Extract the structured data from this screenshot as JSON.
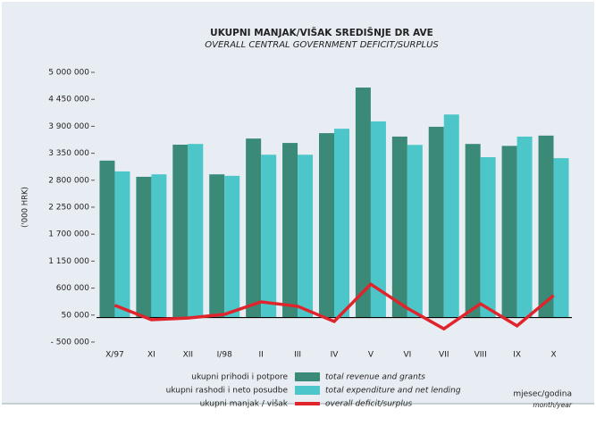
{
  "chart_data": {
    "type": "bar",
    "title": "UKUPNI MANJAK/VIŠAK SREDIŠNJE DR AVE",
    "subtitle": "OVERALL CENTRAL GOVERNMENT DEFICIT/SURPLUS",
    "y_label": "('000 HRK)",
    "x_label": "mjesec/godina",
    "x_label_en": "month/year",
    "categories": [
      "X/97",
      "XI",
      "XII",
      "I/98",
      "II",
      "III",
      "IV",
      "V",
      "VI",
      "VII",
      "VIII",
      "IX",
      "X"
    ],
    "series": [
      {
        "name": "ukupni prihodi i potpore",
        "label_en": "total revenue and grants",
        "type": "bar",
        "color": "#3b8a78",
        "values": [
          3200000,
          2870000,
          3525000,
          2920000,
          3650000,
          3560000,
          3760000,
          4690000,
          3690000,
          3890000,
          3540000,
          3500000,
          3710000
        ]
      },
      {
        "name": "ukupni rashodi i neto posudbe",
        "label_en": "total expenditure and net lending",
        "type": "bar",
        "color": "#4cc6c9",
        "values": [
          2980000,
          2920000,
          3540000,
          2890000,
          3320000,
          3320000,
          3850000,
          4000000,
          3520000,
          4140000,
          3270000,
          3690000,
          3250000
        ]
      },
      {
        "name": "ukupni manjak / višak",
        "label_en": "overall deficit/surplus",
        "type": "line",
        "color": "#e0242b",
        "values": [
          250000,
          -45000,
          -10000,
          65000,
          320000,
          230000,
          -80000,
          680000,
          190000,
          -230000,
          280000,
          -170000,
          450000
        ]
      }
    ],
    "ylim": [
      -500000,
      5000000
    ],
    "yticks": [
      {
        "value": -500000,
        "label": "- 500 000"
      },
      {
        "value": 50000,
        "label": "50 000"
      },
      {
        "value": 600000,
        "label": "600 000"
      },
      {
        "value": 1150000,
        "label": "1 150 000"
      },
      {
        "value": 1700000,
        "label": "1 700 000"
      },
      {
        "value": 2250000,
        "label": "2 250 000"
      },
      {
        "value": 2800000,
        "label": "2 800 000"
      },
      {
        "value": 3350000,
        "label": "3 350 000"
      },
      {
        "value": 3900000,
        "label": "3 900 000"
      },
      {
        "value": 4450000,
        "label": "4 450 000"
      },
      {
        "value": 5000000,
        "label": "5 000 000"
      }
    ]
  }
}
